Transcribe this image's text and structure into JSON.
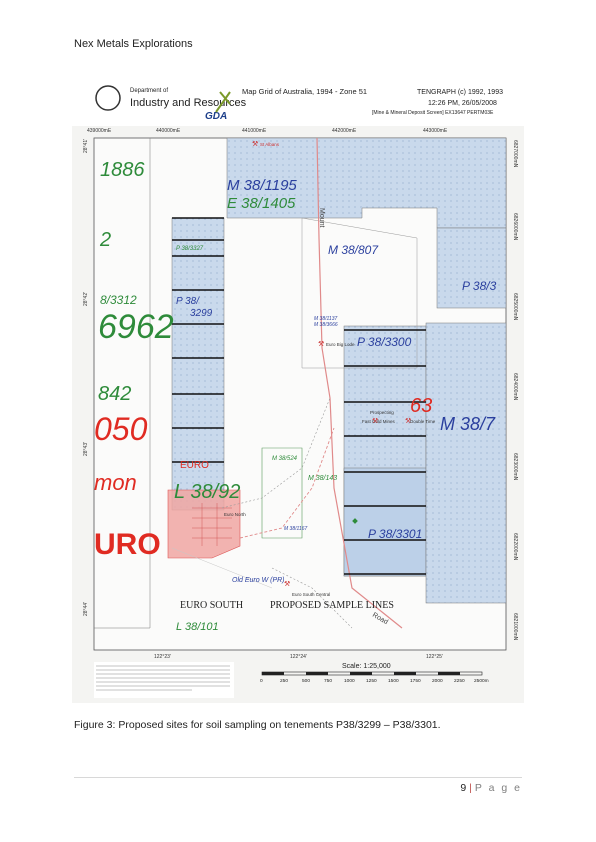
{
  "header": {
    "company": "Nex Metals Explorations"
  },
  "map": {
    "legend_header": {
      "department_line1": "Department of",
      "department_line2": "Industry and Resources",
      "gda_logo": "GDA",
      "grid_title": "Map Grid of Australia, 1994 - Zone 51",
      "tengraph_line1": "TENGRAPH (c) 1992, 1993",
      "tengraph_line2": "12:26 PM, 26/05/2008",
      "tengraph_line3": "[Mine & Mineral Deposit Screen] EX13647 PERTM03E"
    },
    "eastings": [
      "439000mE",
      "440000mE",
      "441000mE",
      "442000mE",
      "443000mE"
    ],
    "northings": [
      "6827000mN",
      "6826000mN",
      "6825000mN",
      "6824000mN",
      "6823000mN",
      "6822000mN",
      "6821000mN"
    ],
    "latitudes": [
      "28°41'",
      "28°42'",
      "28°43'",
      "28°44'"
    ],
    "longitudes": [
      "122°23'",
      "122°24'",
      "122°25'"
    ],
    "tenement_labels": {
      "l1886": "1886",
      "m38_1195": "M 38/1195",
      "e38_1405": "E 38/1405",
      "two": "2",
      "p38_3327": "P 38/3327",
      "m38_807": "M 38/807",
      "p38_3": "P 38/3",
      "l3312": "8/3312",
      "n6962": "6962",
      "p38_3299a": "P 38/",
      "p38_3299b": "3299",
      "m38_1137": "M 38/1137",
      "m38_3666": "M 38/3666",
      "p38_3300": "P 38/3300",
      "n842": "842",
      "n050": "050",
      "n63": "63",
      "m38_7": "M 38/7",
      "euro": "EURO",
      "m38_524": "M 38/524",
      "m38_143": "M 38/143",
      "mon": "mon",
      "l38_92": "L 38/92",
      "uro": "URO",
      "m38_1167": "M 38/1167",
      "p38_3301": "P 38/3301",
      "old_euro": "Old Euro W (PR)",
      "euro_south": "EURO SOUTH",
      "proposed": "PROPOSED SAMPLE LINES",
      "l38_101": "L 38/101",
      "mount": "Mount",
      "road": "Road",
      "euro_north": "Euro North",
      "euro_south_central": "Euro South Central",
      "st_albans": "St Albans",
      "prospecting": "Prospecting",
      "fast_gold": "Fast Gold Mines",
      "double_time": "Double Time",
      "euro_big_lode": "Euro Big Lode"
    },
    "scale_label": "Scale: 1:25,000",
    "scale_ticks": [
      "0",
      "250",
      "500",
      "750",
      "1000",
      "1250",
      "1500",
      "1750",
      "2000",
      "2250",
      "2500m"
    ],
    "colors": {
      "tenement_fill": "#c9d9ec",
      "tenement_label_blue": "#2a3f9e",
      "green_label": "#2e8b3a",
      "red_label": "#e02b22",
      "sample_line": "#111111",
      "euro_fill": "#f0a6a2"
    }
  },
  "caption": "Figure 3: Proposed sites for soil sampling on tenements P38/3299 – P38/3301.",
  "footer": {
    "page_number": "9",
    "separator": "|",
    "page_word": "P a g e"
  }
}
